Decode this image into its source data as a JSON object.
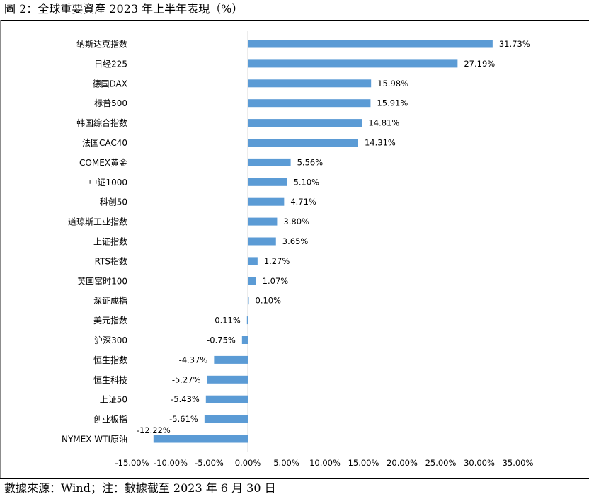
{
  "figure": {
    "title": "圖 2：全球重要資產 2023 年上半年表現（%）",
    "source_note": "數據來源：Wind；注：數據截至 2023 年 6 月 30 日"
  },
  "chart_data": {
    "type": "bar",
    "orientation": "horizontal",
    "title": "全球重要資產 2023 年上半年表現（%）",
    "xlabel": "",
    "ylabel": "",
    "xlim": [
      -15,
      35
    ],
    "ticks": [
      -15,
      -10,
      -5,
      0,
      5,
      10,
      15,
      20,
      25,
      30,
      35
    ],
    "tick_labels": [
      "-15.00%",
      "-10.00%",
      "-5.00%",
      "0.00%",
      "5.00%",
      "10.00%",
      "15.00%",
      "20.00%",
      "25.00%",
      "30.00%",
      "35.00%"
    ],
    "grid": false,
    "bar_color": "#5b9bd5",
    "categories": [
      "纳斯达克指数",
      "日经225",
      "德国DAX",
      "标普500",
      "韩国综合指数",
      "法国CAC40",
      "COMEX黄金",
      "中证1000",
      "科创50",
      "道琼斯工业指数",
      "上证指数",
      "RTS指数",
      "英国富时100",
      "深证成指",
      "美元指数",
      "沪深300",
      "恒生指数",
      "恒生科技",
      "上证50",
      "创业板指",
      "NYMEX WTI原油"
    ],
    "values": [
      31.73,
      27.19,
      15.98,
      15.91,
      14.81,
      14.31,
      5.56,
      5.1,
      4.71,
      3.8,
      3.65,
      1.27,
      1.07,
      0.1,
      -0.11,
      -0.75,
      -4.37,
      -5.27,
      -5.43,
      -5.61,
      -12.22
    ],
    "value_labels": [
      "31.73%",
      "27.19%",
      "15.98%",
      "15.91%",
      "14.81%",
      "14.31%",
      "5.56%",
      "5.10%",
      "4.71%",
      "3.80%",
      "3.65%",
      "1.27%",
      "1.07%",
      "0.10%",
      "-0.11%",
      "-0.75%",
      "-4.37%",
      "-5.27%",
      "-5.43%",
      "-5.61%",
      "-12.22%"
    ]
  }
}
